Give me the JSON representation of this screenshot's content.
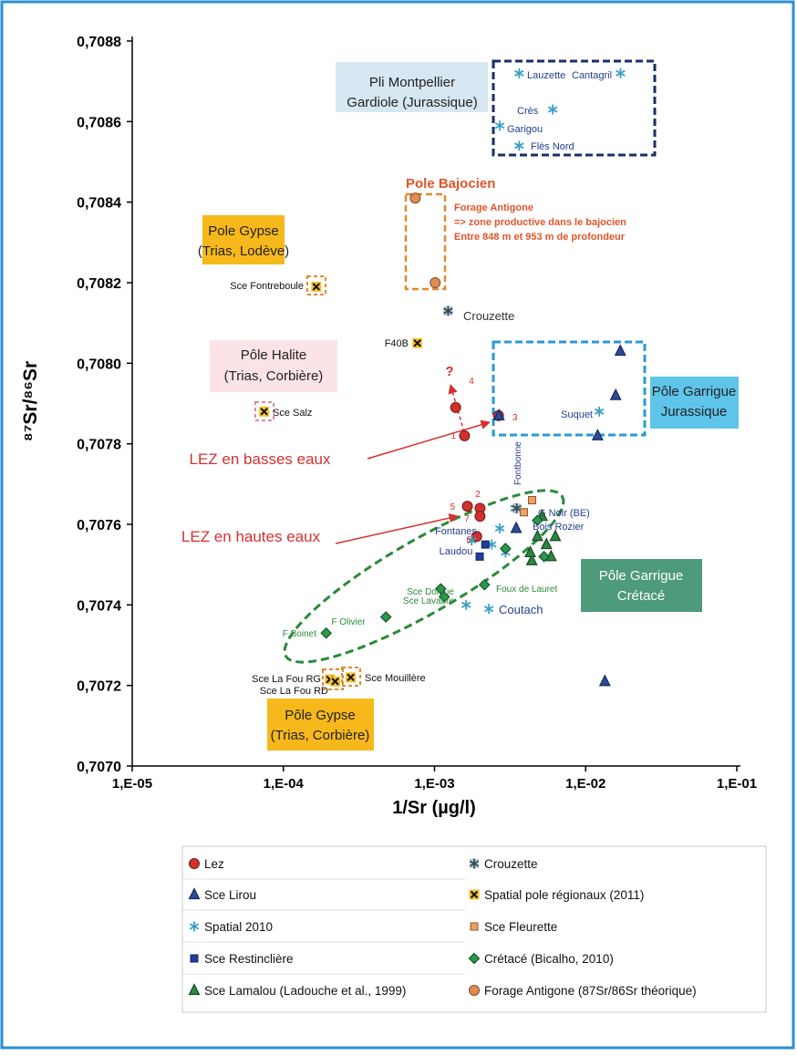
{
  "chart_data": {
    "type": "scatter",
    "ylabel": "⁸⁷Sr/⁸⁶Sr",
    "xlabel": "1/Sr (µg/l)",
    "xscale": "log",
    "xlim": [
      1e-05,
      0.1
    ],
    "xticks": [
      {
        "value": 1e-05,
        "label": "1,E-05"
      },
      {
        "value": 0.0001,
        "label": "1,E-04"
      },
      {
        "value": 0.001,
        "label": "1,E-03"
      },
      {
        "value": 0.01,
        "label": "1,E-02"
      },
      {
        "value": 0.1,
        "label": "1,E-01"
      }
    ],
    "ylim": [
      0.707,
      0.7088
    ],
    "yticks": [
      {
        "value": 0.707,
        "label": "0,7070"
      },
      {
        "value": 0.7072,
        "label": "0,7072"
      },
      {
        "value": 0.7074,
        "label": "0,7074"
      },
      {
        "value": 0.7076,
        "label": "0,7076"
      },
      {
        "value": 0.7078,
        "label": "0,7078"
      },
      {
        "value": 0.708,
        "label": "0,7080"
      },
      {
        "value": 0.7082,
        "label": "0,7082"
      },
      {
        "value": 0.7084,
        "label": "0,7084"
      },
      {
        "value": 0.7086,
        "label": "0,7086"
      },
      {
        "value": 0.7088,
        "label": "0,7088"
      }
    ],
    "series": [
      {
        "name": "Lez",
        "marker": "circle",
        "color": "#d0312d",
        "x": [
          0.00158,
          0.00138,
          0.00265,
          0.00165,
          0.002,
          0.002,
          0.0019
        ],
        "values": [
          0.70782,
          0.70789,
          0.70787,
          0.707645,
          0.70764,
          0.70762,
          0.70757
        ]
      },
      {
        "name": "Sce Lirou",
        "marker": "triangle",
        "color": "#2a4a9a",
        "x": [
          0.00267,
          0.01695,
          0.0158,
          0.012,
          0.0134,
          0.00347
        ],
        "values": [
          0.70787,
          0.70803,
          0.70792,
          0.70782,
          0.70721,
          0.70759
        ]
      },
      {
        "name": "Spatial 2010",
        "marker": "asterisk",
        "color": "#3a9fc6",
        "x": [
          0.00363,
          0.017,
          0.00606,
          0.0027,
          0.00363,
          0.0123,
          0.00229,
          0.00162,
          0.00239,
          0.0027,
          0.00295,
          0.0034,
          0.00176
        ],
        "values": [
          0.70872,
          0.70872,
          0.70863,
          0.70859,
          0.70854,
          0.70788,
          0.70739,
          0.7074,
          0.70755,
          0.70759,
          0.70753,
          0.70764,
          0.70756
        ]
      },
      {
        "name": "Sce Restinclière",
        "marker": "square",
        "color": "#1f3f9f",
        "x": [
          0.00199,
          0.00217
        ],
        "values": [
          0.70752,
          0.70755
        ]
      },
      {
        "name": "Sce Lamalou (Ladouche et al., 1999)",
        "marker": "triangle",
        "color": "#2e8540",
        "x": [
          0.00515,
          0.0048,
          0.0055,
          0.0044,
          0.0059,
          0.0063,
          0.0043
        ],
        "values": [
          0.70762,
          0.70757,
          0.70755,
          0.70751,
          0.70752,
          0.70757,
          0.70753
        ]
      },
      {
        "name": "Crouzette",
        "marker": "asterisk-square",
        "color": "#5e8c9c",
        "x": [
          0.00123,
          0.0035
        ],
        "values": [
          0.70813,
          0.70764
        ]
      },
      {
        "name": "Spatial pole régionaux (2011)",
        "marker": "x-square",
        "color": "#f2c12e",
        "x": [
          0.000165,
          0.00077,
          7.46e-05,
          0.000203,
          0.00022,
          0.000279
        ],
        "values": [
          0.70819,
          0.70805,
          0.70788,
          0.707215,
          0.70721,
          0.70722
        ]
      },
      {
        "name": "Sce Fleurette",
        "marker": "square",
        "color": "#f0a060",
        "x": [
          0.00442,
          0.0039
        ],
        "values": [
          0.70766,
          0.70763
        ]
      },
      {
        "name": "Crétacé (Bicalho, 2010)",
        "marker": "diamond",
        "color": "#2a9a4a",
        "x": [
          0.000192,
          0.000477,
          0.0011,
          0.00116,
          0.00214,
          0.00295,
          0.0048,
          0.0053
        ],
        "values": [
          0.70733,
          0.70737,
          0.70744,
          0.70742,
          0.70745,
          0.70754,
          0.70761,
          0.70752
        ]
      },
      {
        "name": "Forage Antigone (87Sr/86Sr théorique)",
        "marker": "circle",
        "color": "#e08a50",
        "x": [
          0.000746,
          0.00101
        ],
        "values": [
          0.70841,
          0.7082
        ]
      }
    ],
    "annotations": [
      [
        "Pli Montpellier",
        "Gardiole (Jurassique)"
      ],
      "Pole Bajocien",
      [
        "Forage Antigone",
        "=> zone productive dans le bajocien",
        "Entre 848 m et 953 m de profondeur"
      ],
      [
        "Pole Gypse",
        "(Trias, Lodève)"
      ],
      [
        "Pôle Halite",
        "(Trias, Corbière)"
      ],
      [
        "Pôle Garrigue",
        "Jurassique"
      ],
      "LEZ en basses eaux",
      "LEZ en hautes eaux",
      [
        "Pôle Garrigue",
        "Crétacé"
      ],
      [
        "Pôle Gypse",
        "(Trias, Corbière)"
      ],
      "?",
      "Lauzette",
      "Cantagril",
      "Crès",
      "Garigou",
      "Flès Nord",
      "Crouzette",
      "F40B",
      "Sce Fontreboule",
      "Sce Salz",
      "Suquet",
      "Fontbonne",
      "G Noir (BE)",
      "Bois Rozier",
      "Fontanes",
      "Laudou",
      "Sce Dolgue",
      "Sce Lavabre",
      "Foux de Lauret",
      "Coutach",
      "F Olivier",
      "F Boinet",
      "Sce La Fou RG",
      "Sce La Fou RD",
      "Sce Mouillère",
      "1",
      "2",
      "3",
      "4",
      "5",
      "6",
      "7"
    ]
  }
}
